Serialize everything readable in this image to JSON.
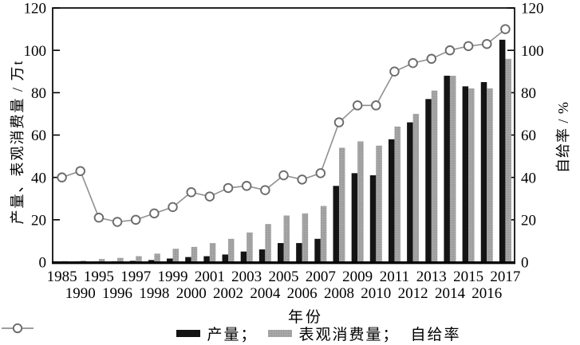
{
  "chart": {
    "colors": {
      "background": "#ffffff",
      "axis": "#000000",
      "production_bar": "#141414",
      "consumption_bar": "#a7a7a7",
      "consumption_dot": "#8a8a8a",
      "line": "#909090",
      "marker_stroke": "#6b6b6b",
      "marker_fill": "#ffffff",
      "text": "#000000"
    },
    "legend": [
      {
        "label": "产量；",
        "marker": "black-bar-swatch"
      },
      {
        "label": "表观消费量；",
        "marker": "gray-bar-swatch"
      },
      {
        "label": "自给率",
        "marker": "line-circle-marker"
      }
    ]
  },
  "chart_data": {
    "type": "bar",
    "title": "",
    "xlabel": "年份",
    "ylabel_left": "产量、表观消费量 / 万t",
    "ylabel_right": "自给率 / %",
    "ylim_left": [
      0,
      120
    ],
    "ylim_right": [
      0,
      120
    ],
    "yticks": [
      0,
      20,
      40,
      60,
      80,
      100,
      120
    ],
    "grid": false,
    "legend_position": "bottom",
    "categories": [
      "1985",
      "1990",
      "1995",
      "1996",
      "1997",
      "1998",
      "1999",
      "2000",
      "2001",
      "2002",
      "2003",
      "2004",
      "2005",
      "2006",
      "2007",
      "2008",
      "2009",
      "2010",
      "2011",
      "2012",
      "2013",
      "2014",
      "2015",
      "2016",
      "2017"
    ],
    "series": [
      {
        "name": "产量",
        "type": "bar",
        "axis": "left",
        "values": [
          0.2,
          0.3,
          0.3,
          0.4,
          0.6,
          1.0,
          1.7,
          2.4,
          2.8,
          3.6,
          5,
          6,
          9,
          9,
          11,
          36,
          42,
          41,
          58,
          66,
          77,
          88,
          83,
          85,
          105
        ]
      },
      {
        "name": "表观消费量",
        "type": "bar",
        "axis": "left",
        "values": [
          0.5,
          0.7,
          1.5,
          2.0,
          2.8,
          4.0,
          6.3,
          7.2,
          9,
          11,
          14,
          18,
          22,
          23,
          26.5,
          54,
          57,
          55,
          64,
          70,
          81,
          88,
          82,
          82,
          96
        ]
      },
      {
        "name": "自给率",
        "type": "line",
        "axis": "right",
        "values": [
          40,
          43,
          21,
          19,
          20,
          23,
          26,
          33,
          31,
          35,
          36,
          34,
          41,
          39,
          42,
          66,
          74,
          74,
          90,
          94,
          96,
          100,
          102,
          103,
          110
        ]
      }
    ]
  }
}
